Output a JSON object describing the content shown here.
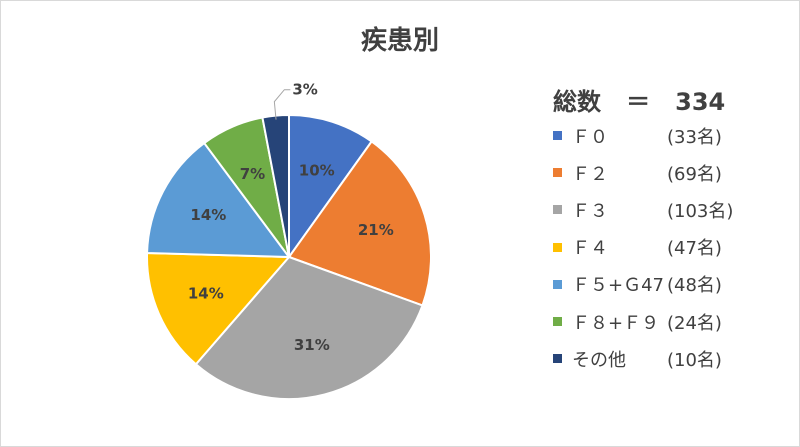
{
  "chart_data": {
    "type": "pie",
    "title": "疾患別",
    "total_label": "総数",
    "total_value": "334",
    "slices": [
      {
        "name": "Ｆ０",
        "count_label": "(33名)",
        "value": 33,
        "percent_label": "10%",
        "color": "#4472C4"
      },
      {
        "name": "Ｆ２",
        "count_label": "(69名)",
        "value": 69,
        "percent_label": "21%",
        "color": "#ED7D31"
      },
      {
        "name": "Ｆ３",
        "count_label": "(103名)",
        "value": 103,
        "percent_label": "31%",
        "color": "#A5A5A5"
      },
      {
        "name": "Ｆ４",
        "count_label": "(47名)",
        "value": 47,
        "percent_label": "14%",
        "color": "#FFC000"
      },
      {
        "name": "Ｆ５+Ｇ47",
        "count_label": "(48名)",
        "value": 48,
        "percent_label": "14%",
        "color": "#5B9BD5"
      },
      {
        "name": "Ｆ８+Ｆ９",
        "count_label": "(24名)",
        "value": 24,
        "percent_label": "7%",
        "color": "#70AD47"
      },
      {
        "name": "その他",
        "count_label": "(10名)",
        "value": 10,
        "percent_label": "3%",
        "color": "#264478"
      }
    ],
    "legend_position": "right"
  }
}
